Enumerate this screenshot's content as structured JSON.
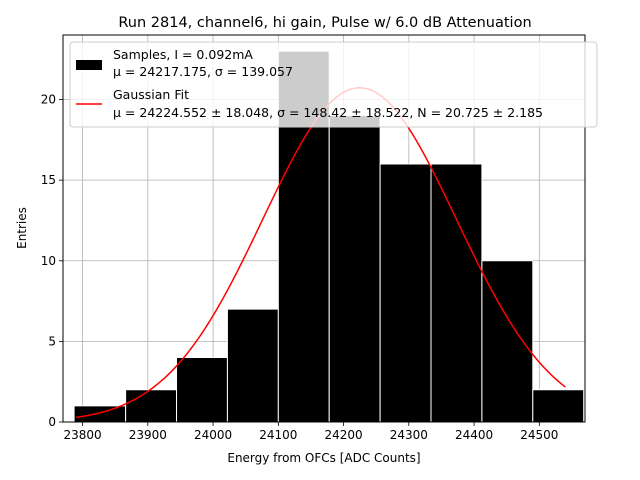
{
  "chart_data": {
    "type": "bar",
    "title": "Run 2814, channel6, hi gain, Pulse w/ 6.0 dB Attenuation",
    "xlabel": "Energy from OFCs [ADC Counts]",
    "ylabel": "Entries",
    "xlim": [
      23770,
      24570
    ],
    "ylim": [
      0,
      24
    ],
    "xticks": [
      23800,
      23900,
      24000,
      24100,
      24200,
      24300,
      24400,
      24500
    ],
    "yticks": [
      0,
      5,
      10,
      15,
      20
    ],
    "grid": true,
    "legend_position": "top-left",
    "histogram": {
      "name": "Samples, I = 0.092mA",
      "name_line2": "μ = 24217.175, σ = 139.057",
      "color": "#000000",
      "bins": [
        {
          "x0": 23787,
          "x1": 23866,
          "count": 1
        },
        {
          "x0": 23866,
          "x1": 23944,
          "count": 2
        },
        {
          "x0": 23944,
          "x1": 24022,
          "count": 4
        },
        {
          "x0": 24022,
          "x1": 24100,
          "count": 7
        },
        {
          "x0": 24100,
          "x1": 24178,
          "count": 23
        },
        {
          "x0": 24178,
          "x1": 24256,
          "count": 19
        },
        {
          "x0": 24256,
          "x1": 24334,
          "count": 16
        },
        {
          "x0": 24334,
          "x1": 24412,
          "count": 16
        },
        {
          "x0": 24412,
          "x1": 24490,
          "count": 10
        },
        {
          "x0": 24490,
          "x1": 24568,
          "count": 2
        }
      ]
    },
    "fit": {
      "name": "Gaussian Fit",
      "name_line2": "μ = 24224.552 ± 18.048, σ = 148.42 ± 18.522, N = 20.725 ± 2.185",
      "mu": 24224.552,
      "sigma": 148.42,
      "N": 20.725,
      "x_range": [
        23790,
        24540
      ],
      "color": "#ff0000"
    }
  }
}
